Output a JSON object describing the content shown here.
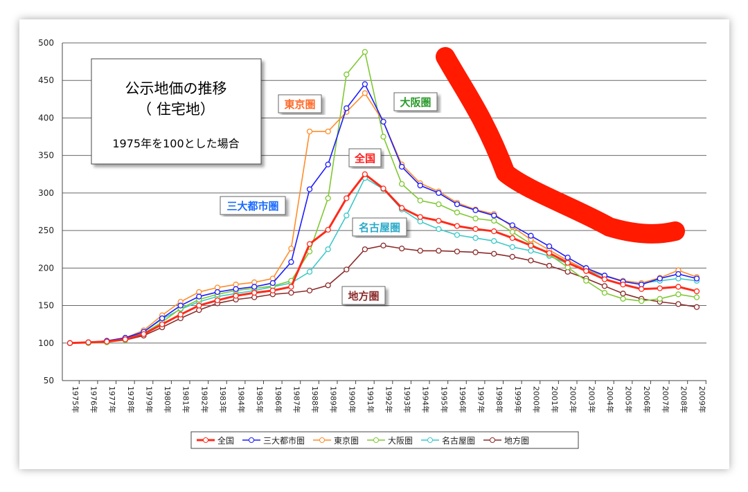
{
  "chart_data": {
    "type": "line",
    "title": [
      "公示地価の推移",
      "（ 住宅地）",
      "1975年を100とした場合"
    ],
    "categories": [
      "1975年",
      "1976年",
      "1977年",
      "1978年",
      "1979年",
      "1980年",
      "1981年",
      "1982年",
      "1983年",
      "1984年",
      "1985年",
      "1986年",
      "1987年",
      "1988年",
      "1989年",
      "1990年",
      "1991年",
      "1992年",
      "1993年",
      "1994年",
      "1995年",
      "1996年",
      "1997年",
      "1998年",
      "1999年",
      "2000年",
      "2001年",
      "2002年",
      "2003年",
      "2004年",
      "2005年",
      "2006年",
      "2007年",
      "2008年",
      "2009年"
    ],
    "series": [
      {
        "name": "全国",
        "color": "#ff2a1a",
        "values": [
          100,
          101,
          102,
          105,
          112,
          125,
          138,
          150,
          157,
          163,
          167,
          170,
          175,
          232,
          251,
          293,
          325,
          306,
          280,
          268,
          263,
          256,
          252,
          249,
          240,
          230,
          220,
          207,
          196,
          185,
          178,
          172,
          173,
          175,
          169
        ]
      },
      {
        "name": "三大都市圏",
        "color": "#1a1aff",
        "values": [
          100,
          101,
          103,
          107,
          115,
          133,
          150,
          162,
          168,
          172,
          175,
          180,
          208,
          305,
          338,
          413,
          445,
          395,
          335,
          310,
          300,
          285,
          277,
          270,
          257,
          243,
          229,
          214,
          200,
          190,
          182,
          178,
          186,
          192,
          186
        ]
      },
      {
        "name": "東京圏",
        "color": "#ff8c2a",
        "values": [
          100,
          101,
          103,
          107,
          117,
          137,
          155,
          168,
          174,
          178,
          181,
          186,
          226,
          382,
          382,
          408,
          433,
          395,
          338,
          313,
          302,
          287,
          278,
          272,
          255,
          238,
          224,
          210,
          198,
          190,
          183,
          180,
          187,
          197,
          188
        ]
      },
      {
        "name": "大阪圏",
        "color": "#7ec832",
        "values": [
          100,
          100,
          101,
          104,
          113,
          128,
          146,
          158,
          165,
          170,
          173,
          176,
          183,
          222,
          293,
          458,
          488,
          375,
          312,
          290,
          285,
          274,
          266,
          263,
          248,
          232,
          218,
          201,
          183,
          167,
          159,
          156,
          159,
          165,
          161
        ]
      },
      {
        "name": "名古屋圏",
        "color": "#3cc8c8",
        "values": [
          100,
          101,
          102,
          105,
          115,
          132,
          145,
          155,
          162,
          166,
          170,
          175,
          180,
          195,
          225,
          270,
          320,
          305,
          278,
          262,
          252,
          244,
          240,
          236,
          228,
          223,
          216,
          206,
          197,
          189,
          183,
          180,
          183,
          186,
          183
        ]
      },
      {
        "name": "地方圏",
        "color": "#8b2a2a",
        "values": [
          100,
          101,
          102,
          104,
          110,
          121,
          133,
          144,
          153,
          158,
          161,
          165,
          167,
          170,
          177,
          198,
          225,
          230,
          226,
          223,
          223,
          222,
          221,
          219,
          215,
          210,
          203,
          195,
          186,
          176,
          166,
          159,
          155,
          152,
          148
        ]
      }
    ],
    "annotations": [
      "東京圏",
      "大阪圏",
      "全国",
      "三大都市圏",
      "名古屋圏",
      "地方圏"
    ],
    "ylim": [
      50,
      500
    ],
    "yticks": [
      50,
      100,
      150,
      200,
      250,
      300,
      350,
      400,
      450,
      500
    ],
    "grid": true,
    "legend": "bottom"
  }
}
